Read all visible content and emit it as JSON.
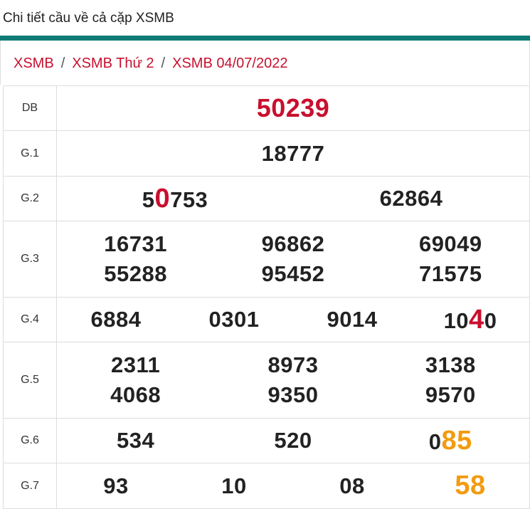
{
  "header": {
    "title": "Chi tiết cầu về cả cặp XSMB"
  },
  "breadcrumb": [
    {
      "label": "XSMB"
    },
    {
      "label": "XSMB Thứ 2"
    },
    {
      "label": "XSMB 04/07/2022"
    }
  ],
  "breadcrumb_separator": "/",
  "colors": {
    "accent_bar": "#0e7b76",
    "link": "#c8102e",
    "highlight_red": "#c8102e",
    "highlight_orange": "#f29b0f"
  },
  "prizes": [
    {
      "label": "DB",
      "numbers": [
        {
          "parts": [
            {
              "text": "50239"
            }
          ]
        }
      ]
    },
    {
      "label": "G.1",
      "numbers": [
        {
          "parts": [
            {
              "text": "18777"
            }
          ]
        }
      ]
    },
    {
      "label": "G.2",
      "numbers": [
        {
          "parts": [
            {
              "text": "5"
            },
            {
              "text": "0",
              "hl": "red"
            },
            {
              "text": "753"
            }
          ]
        },
        {
          "parts": [
            {
              "text": "62864"
            }
          ]
        }
      ]
    },
    {
      "label": "G.3",
      "numbers": [
        {
          "parts": [
            {
              "text": "16731"
            }
          ]
        },
        {
          "parts": [
            {
              "text": "96862"
            }
          ]
        },
        {
          "parts": [
            {
              "text": "69049"
            }
          ]
        },
        {
          "parts": [
            {
              "text": "55288"
            }
          ]
        },
        {
          "parts": [
            {
              "text": "95452"
            }
          ]
        },
        {
          "parts": [
            {
              "text": "71575"
            }
          ]
        }
      ]
    },
    {
      "label": "G.4",
      "numbers": [
        {
          "parts": [
            {
              "text": "6884"
            }
          ]
        },
        {
          "parts": [
            {
              "text": "0301"
            }
          ]
        },
        {
          "parts": [
            {
              "text": "9014"
            }
          ]
        },
        {
          "parts": [
            {
              "text": "10"
            },
            {
              "text": "4",
              "hl": "red"
            },
            {
              "text": "0"
            }
          ]
        }
      ]
    },
    {
      "label": "G.5",
      "numbers": [
        {
          "parts": [
            {
              "text": "2311"
            }
          ]
        },
        {
          "parts": [
            {
              "text": "8973"
            }
          ]
        },
        {
          "parts": [
            {
              "text": "3138"
            }
          ]
        },
        {
          "parts": [
            {
              "text": "4068"
            }
          ]
        },
        {
          "parts": [
            {
              "text": "9350"
            }
          ]
        },
        {
          "parts": [
            {
              "text": "9570"
            }
          ]
        }
      ]
    },
    {
      "label": "G.6",
      "numbers": [
        {
          "parts": [
            {
              "text": "534"
            }
          ]
        },
        {
          "parts": [
            {
              "text": "520"
            }
          ]
        },
        {
          "parts": [
            {
              "text": "0"
            },
            {
              "text": "85",
              "hl": "orange"
            }
          ]
        }
      ]
    },
    {
      "label": "G.7",
      "numbers": [
        {
          "parts": [
            {
              "text": "93"
            }
          ]
        },
        {
          "parts": [
            {
              "text": "10"
            }
          ]
        },
        {
          "parts": [
            {
              "text": "08"
            }
          ]
        },
        {
          "parts": [
            {
              "text": "58",
              "hl": "orange"
            }
          ]
        }
      ]
    }
  ]
}
